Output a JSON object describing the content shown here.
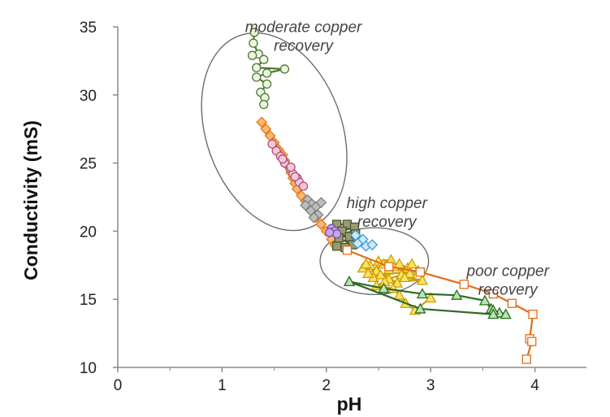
{
  "chart_data": {
    "type": "scatter",
    "title": "",
    "xlabel": "pH",
    "ylabel": "Conductivity (mS)",
    "xlim": [
      0,
      4.5
    ],
    "ylim": [
      10,
      35
    ],
    "x_ticks": [
      "0",
      "1",
      "2",
      "3",
      "4"
    ],
    "y_ticks": [
      "10",
      "15",
      "20",
      "25",
      "30",
      "35"
    ],
    "grid": false,
    "legend": "none",
    "annotations": [
      {
        "lines": [
          "moderate copper",
          "recovery"
        ],
        "x": 1.78,
        "y": 34.6
      },
      {
        "lines": [
          "high copper",
          "recovery"
        ],
        "x": 2.58,
        "y": 21.7
      },
      {
        "lines": [
          "poor copper",
          "recovery"
        ],
        "x": 3.74,
        "y": 16.7
      }
    ],
    "ellipses": [
      {
        "cx": 1.5,
        "cy": 27.3,
        "rx": 0.65,
        "ry": 7.5,
        "angle": -20
      },
      {
        "cx": 2.46,
        "cy": 17.8,
        "rx": 0.52,
        "ry": 2.45,
        "angle": 0
      }
    ],
    "series": [
      {
        "color": "#4a7a2b",
        "fill": "#eef4e6",
        "marker": "circle",
        "points": [
          [
            1.31,
            34.6
          ],
          [
            1.3,
            33.8
          ],
          [
            1.35,
            33.0
          ],
          [
            1.29,
            32.9
          ],
          [
            1.4,
            32.6
          ],
          [
            1.33,
            32.0
          ],
          [
            1.6,
            31.9
          ],
          [
            1.43,
            31.6
          ],
          [
            1.33,
            31.3
          ],
          [
            1.43,
            30.8
          ],
          [
            1.37,
            30.2
          ],
          [
            1.41,
            29.8
          ],
          [
            1.4,
            29.3
          ]
        ]
      },
      {
        "color": "#e8780c",
        "fill": "#f8b878",
        "marker": "diamond",
        "points": [
          [
            1.38,
            28.0
          ],
          [
            1.42,
            27.5
          ],
          [
            1.46,
            27.0
          ],
          [
            1.5,
            26.5
          ],
          [
            1.54,
            26.0
          ],
          [
            1.58,
            25.6
          ],
          [
            1.6,
            25.2
          ],
          [
            1.63,
            24.8
          ],
          [
            1.66,
            24.3
          ],
          [
            1.68,
            23.9
          ],
          [
            1.7,
            23.5
          ],
          [
            1.72,
            23.1
          ],
          [
            1.76,
            22.6
          ],
          [
            1.8,
            22.2
          ],
          [
            1.83,
            21.9
          ],
          [
            1.86,
            21.6
          ],
          [
            1.88,
            21.3
          ],
          [
            1.9,
            21.0
          ],
          [
            1.95,
            20.5
          ],
          [
            2.0,
            20.0
          ],
          [
            2.05,
            19.4
          ],
          [
            2.08,
            19.0
          ]
        ]
      },
      {
        "color": "#b0507a",
        "fill": "#f4c8d8",
        "marker": "circle",
        "points": [
          [
            1.48,
            26.4
          ],
          [
            1.52,
            25.9
          ],
          [
            1.56,
            25.5
          ],
          [
            1.6,
            25.0
          ],
          [
            1.65,
            24.6
          ],
          [
            1.68,
            24.2
          ],
          [
            1.72,
            23.9
          ],
          [
            1.74,
            23.6
          ],
          [
            1.66,
            24.7
          ],
          [
            1.58,
            25.3
          ],
          [
            1.7,
            24.0
          ],
          [
            1.78,
            23.3
          ]
        ]
      },
      {
        "color": "#808080",
        "fill": "#bdbdbd",
        "marker": "diamond",
        "points": [
          [
            1.82,
            22.3
          ],
          [
            1.86,
            22.0
          ],
          [
            1.9,
            21.8
          ],
          [
            1.85,
            21.5
          ],
          [
            1.92,
            21.2
          ],
          [
            1.88,
            21.0
          ],
          [
            1.8,
            21.9
          ],
          [
            1.95,
            22.1
          ]
        ]
      },
      {
        "color": "#4d5a2c",
        "fill": "#9a9a72",
        "marker": "square",
        "points": [
          [
            2.1,
            20.5
          ],
          [
            2.2,
            20.5
          ],
          [
            2.27,
            20.3
          ],
          [
            2.15,
            20.0
          ],
          [
            2.22,
            19.6
          ],
          [
            2.28,
            19.8
          ],
          [
            2.12,
            19.5
          ],
          [
            2.25,
            19.0
          ],
          [
            2.1,
            18.9
          ],
          [
            2.18,
            18.8
          ]
        ]
      },
      {
        "color": "#7a4fb0",
        "fill": "#c4a8e8",
        "marker": "circle",
        "points": [
          [
            2.05,
            20.2
          ],
          [
            2.08,
            20.0
          ],
          [
            2.1,
            19.8
          ],
          [
            2.03,
            19.9
          ]
        ]
      },
      {
        "color": "#3c9bd6",
        "fill": "#cfe8f8",
        "marker": "diamond",
        "points": [
          [
            2.28,
            19.7
          ],
          [
            2.35,
            19.4
          ],
          [
            2.3,
            19.1
          ],
          [
            2.38,
            18.9
          ],
          [
            2.44,
            19.0
          ]
        ]
      },
      {
        "color": "#c9a000",
        "fill": "#ffe066",
        "marker": "triangle",
        "points": [
          [
            2.35,
            17.3
          ],
          [
            2.42,
            17.5
          ],
          [
            2.48,
            17.1
          ],
          [
            2.55,
            17.6
          ],
          [
            2.6,
            17.2
          ],
          [
            2.65,
            17.4
          ],
          [
            2.7,
            17.6
          ],
          [
            2.78,
            17.3
          ],
          [
            2.82,
            17.6
          ],
          [
            2.88,
            17.1
          ],
          [
            2.52,
            16.8
          ],
          [
            2.45,
            16.6
          ],
          [
            2.6,
            16.5
          ],
          [
            2.72,
            16.8
          ],
          [
            2.8,
            16.9
          ],
          [
            2.5,
            17.8
          ],
          [
            2.62,
            17.9
          ],
          [
            2.4,
            16.9
          ],
          [
            2.38,
            17.6
          ],
          [
            2.68,
            16.2
          ],
          [
            2.75,
            16.6
          ],
          [
            2.92,
            16.4
          ],
          [
            2.56,
            16.3
          ],
          [
            2.48,
            16.0
          ],
          [
            2.64,
            15.8
          ],
          [
            2.7,
            15.3
          ],
          [
            2.76,
            14.7
          ],
          [
            2.85,
            14.2
          ],
          [
            3.0,
            15.1
          ]
        ]
      },
      {
        "color": "#e46b16",
        "fill": "#ffffff",
        "marker": "square",
        "points": [
          [
            2.2,
            18.6
          ],
          [
            2.6,
            17.4
          ],
          [
            2.9,
            17.0
          ],
          [
            3.32,
            16.1
          ],
          [
            3.6,
            15.4
          ],
          [
            3.78,
            14.7
          ],
          [
            3.98,
            13.9
          ],
          [
            3.95,
            12.1
          ],
          [
            3.97,
            11.9
          ],
          [
            3.92,
            10.6
          ]
        ]
      },
      {
        "color": "#2e6b23",
        "fill": "#b8e6b0",
        "marker": "triangle",
        "points": [
          [
            2.22,
            16.3
          ],
          [
            2.55,
            15.8
          ],
          [
            2.92,
            15.4
          ],
          [
            3.25,
            15.3
          ],
          [
            3.52,
            14.9
          ],
          [
            3.58,
            14.3
          ],
          [
            3.66,
            14.0
          ],
          [
            3.72,
            13.9
          ],
          [
            3.6,
            14.2
          ]
        ]
      },
      {
        "color": "#2e6b23",
        "fill": "#b8e6b0",
        "marker": "triangle",
        "points": [
          [
            2.22,
            16.3
          ],
          [
            2.9,
            14.3
          ],
          [
            3.6,
            13.9
          ]
        ]
      }
    ]
  }
}
